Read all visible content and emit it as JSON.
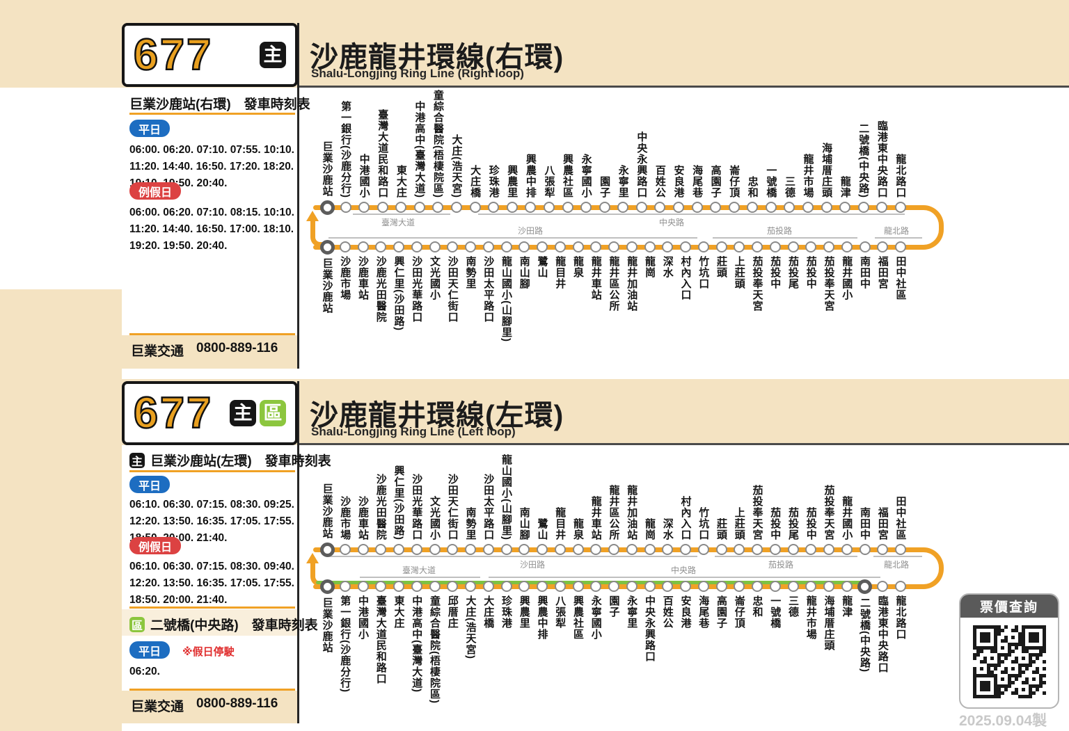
{
  "made_date": "2025.09.04製",
  "qr": {
    "title": "票價查詢"
  },
  "colors": {
    "beige": "#F4E3C2",
    "route_orange": "#F0A125",
    "zone_green": "#8CC63E",
    "weekday_blue": "#1D6DC1",
    "holiday_red": "#DC4242",
    "number_orange": "#E9A01F",
    "section_green_line": "#7DC242"
  },
  "sections": [
    {
      "route_number": "677",
      "route_badges": {
        "main": "主"
      },
      "title": "沙鹿龍井環線(右環)",
      "subtitle": "Shalu-Longjing Ring Line (Right loop)",
      "timetables": [
        {
          "heading": "巨業沙鹿站(右環)　發車時刻表",
          "entries": [
            {
              "day": "平日",
              "times": "06:00. 06:20. 07:10. 07:55. 10:10. 11:20. 14:40. 16:50. 17:20. 18:20. 19:10. 19:50. 20:40."
            },
            {
              "day": "例假日",
              "times": "06:00. 06:20. 07:10. 08:15. 10:10. 11:20. 14:40. 16:50. 17:00. 18:10. 19:20. 19:50. 20:40."
            }
          ]
        }
      ],
      "operator": "巨業交通",
      "phone": "0800-889-116",
      "map": {
        "rows": [
          {
            "side": "top",
            "stations": [
              "巨業沙鹿站",
              "第一銀行(沙鹿分行)",
              "中港國小",
              "臺灣大道民和路口",
              "東大庄",
              "中港高中(臺灣大道)",
              "童綜合醫院(梧棲院區)",
              "大庄(浩天宮)",
              "大庄橋",
              "珍珠港",
              "興農里",
              "興農中排",
              "八張犁",
              "興農社區",
              "永寧國小",
              "園子",
              "永寧里",
              "中央永興路口",
              "百姓公",
              "安良港",
              "海尾巷",
              "高園子",
              "崙仔頂",
              "忠和",
              "一號橋",
              "三德",
              "龍井市場",
              "海埔厝庄頭",
              "龍津",
              "二號橋(中央路)",
              "臨港東中央路口",
              "龍北路口"
            ],
            "terminals": [
              0
            ],
            "roads": [
              {
                "label": "臺灣大道",
                "from": 75,
                "to": 215,
                "at": 140
              },
              {
                "label": "中央路",
                "from": 255,
                "to": 868,
                "at": 533
              }
            ]
          },
          {
            "side": "bottom",
            "stations": [
              "巨業沙鹿站",
              "沙鹿市場",
              "沙鹿車站",
              "沙鹿光田醫院",
              "興仁里(沙田路)",
              "沙田光華路口",
              "文光國小",
              "沙田天仁街口",
              "南勢里",
              "沙田太平路口",
              "龍山國小(山腳里)",
              "南山腳",
              "鷺山",
              "龍目井",
              "龍泉",
              "龍井車站",
              "龍井區公所",
              "龍井加油站",
              "龍崗",
              "深水",
              "村內入口",
              "竹坑口",
              "莊頭",
              "上莊頭",
              "茄投奉天宮",
              "茄投中",
              "茄投尾",
              "茄投中",
              "茄投奉天宮",
              "龍井國小",
              "南田中",
              "福田宮",
              "田中社區"
            ],
            "terminals": [
              0
            ],
            "roads": [
              {
                "label": "沙田路",
                "from": 40,
                "to": 570,
                "at": 330
              },
              {
                "label": "茄投路",
                "from": 592,
                "to": 800,
                "at": 688
              },
              {
                "label": "龍北路",
                "from": 825,
                "to": 893,
                "at": 856
              }
            ]
          }
        ]
      }
    },
    {
      "route_number": "677",
      "route_badges": {
        "main": "主",
        "zone": "區"
      },
      "title": "沙鹿龍井環線(左環)",
      "subtitle": "Shalu-Longjing Ring Line (Left loop)",
      "timetables": [
        {
          "badge": "主",
          "heading": "巨業沙鹿站(左環)　發車時刻表",
          "entries": [
            {
              "day": "平日",
              "times": "06:10. 06:30. 07:15. 08:30. 09:25. 12:20. 13:50. 16:35. 17:05. 17:55. 18:50. 20:00. 21:40."
            },
            {
              "day": "例假日",
              "times": "06:10. 06:30. 07:15. 08:30. 09:40. 12:20. 13:50. 16:35. 17:05. 17:55. 18:50. 20:00. 21:40."
            }
          ]
        },
        {
          "badge": "區",
          "heading": "二號橋(中央路)　發車時刻表",
          "entries": [
            {
              "day": "平日",
              "note": "※假日停駛",
              "times": "06:20."
            }
          ]
        }
      ],
      "operator": "巨業交通",
      "phone": "0800-889-116",
      "map": {
        "rows": [
          {
            "side": "top",
            "stations": [
              "巨業沙鹿站",
              "沙鹿市場",
              "沙鹿車站",
              "沙鹿光田醫院",
              "興仁里(沙田路)",
              "沙田光華路口",
              "文光國小",
              "沙田天仁街口",
              "南勢里",
              "沙田太平路口",
              "龍山國小(山腳里)",
              "南山腳",
              "鷺山",
              "龍目井",
              "龍泉",
              "龍井車站",
              "龍井區公所",
              "龍井加油站",
              "龍崗",
              "深水",
              "村內入口",
              "竹坑口",
              "莊頭",
              "上莊頭",
              "茄投奉天宮",
              "茄投中",
              "茄投尾",
              "茄投中",
              "茄投奉天宮",
              "龍井國小",
              "南田中",
              "福田宮",
              "田中社區"
            ],
            "terminals": [
              0
            ],
            "roads": [
              {
                "label": "沙田路",
                "from": 40,
                "to": 570,
                "at": 333
              },
              {
                "label": "茄投路",
                "from": 595,
                "to": 800,
                "at": 690
              },
              {
                "label": "龍北路",
                "from": 823,
                "to": 893,
                "at": 856
              }
            ]
          },
          {
            "side": "bottom",
            "stations": [
              "巨業沙鹿站",
              "第一銀行(沙鹿分行)",
              "中港國小",
              "臺灣大道民和路口",
              "東大庄",
              "中港高中(臺灣大道)",
              "童綜合醫院(梧棲院區)",
              "邱厝庄",
              "大庄(浩天宮)",
              "大庄橋",
              "珍珠港",
              "興農里",
              "興農中排",
              "八張犁",
              "興農社區",
              "永寧國小",
              "園子",
              "永寧里",
              "中央永興路口",
              "百姓公",
              "安良港",
              "海尾巷",
              "高園子",
              "崙仔頂",
              "忠和",
              "一號橋",
              "三德",
              "龍井市場",
              "海埔厝庄頭",
              "龍津",
              "二號橋(中央路)",
              "臨港東中央路口",
              "龍北路口"
            ],
            "terminals": [
              0,
              30
            ],
            "roads": [
              {
                "label": "臺灣大道",
                "from": 85,
                "to": 258,
                "at": 170
              },
              {
                "label": "中央路",
                "from": 270,
                "to": 833,
                "at": 550
              }
            ]
          }
        ]
      }
    }
  ]
}
